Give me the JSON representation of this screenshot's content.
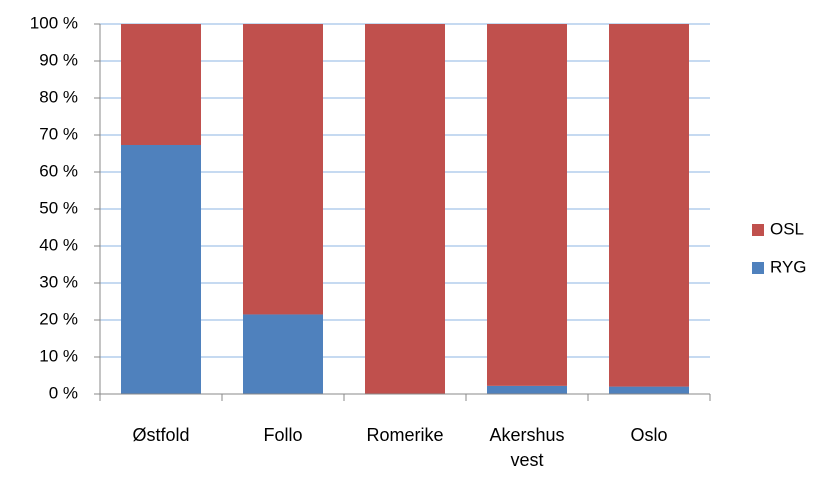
{
  "chart_data": {
    "type": "stacked_bar",
    "categories": [
      "Østfold",
      "Follo",
      "Romerike",
      "Akershus vest",
      "Oslo"
    ],
    "series": [
      {
        "name": "RYG",
        "color": "#4f81bd",
        "values": [
          67.3,
          21.5,
          0,
          2.2,
          2
        ]
      },
      {
        "name": "OSL",
        "color": "#c0504d",
        "values": [
          32.7,
          78.5,
          100,
          97.8,
          98
        ]
      }
    ],
    "ylim": [
      0,
      100
    ],
    "yticks": [
      {
        "value": 0,
        "label": "0 %"
      },
      {
        "value": 10,
        "label": "10 %"
      },
      {
        "value": 20,
        "label": "20 %"
      },
      {
        "value": 30,
        "label": "30 %"
      },
      {
        "value": 40,
        "label": "40 %"
      },
      {
        "value": 50,
        "label": "50 %"
      },
      {
        "value": 60,
        "label": "60 %"
      },
      {
        "value": 70,
        "label": "70 %"
      },
      {
        "value": 80,
        "label": "80 %"
      },
      {
        "value": 90,
        "label": "90 %"
      },
      {
        "value": 100,
        "label": "100 %"
      }
    ],
    "grid": true,
    "legend": "right"
  }
}
